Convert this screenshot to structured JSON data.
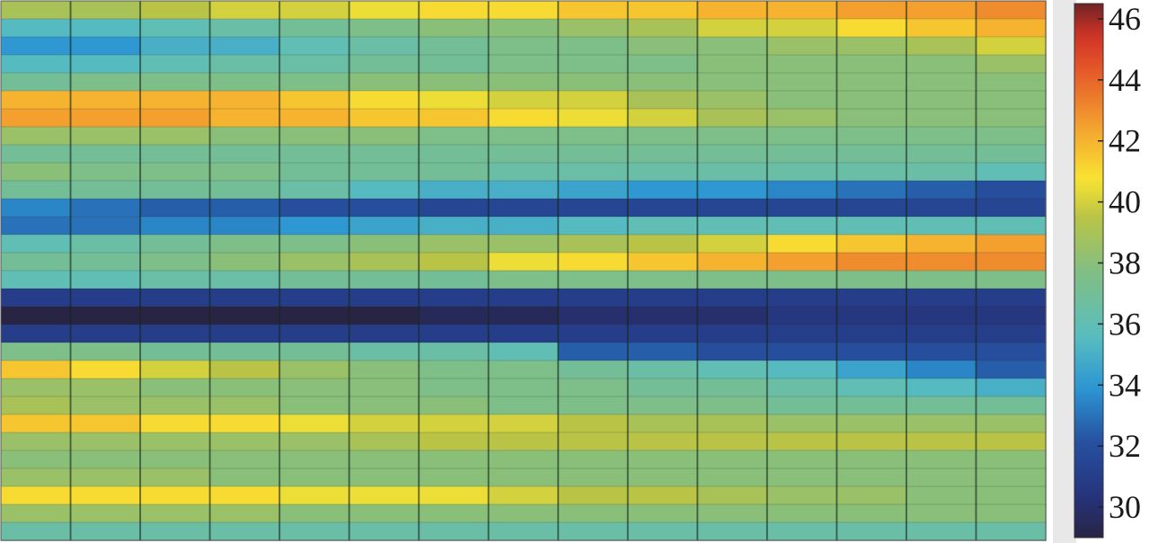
{
  "chart_data": {
    "type": "heatmap",
    "title": "",
    "xlabel": "",
    "ylabel": "",
    "n_columns": 15,
    "n_rows": 30,
    "colorbar": {
      "min": 29,
      "max": 46.5,
      "ticks": [
        "30",
        "32",
        "34",
        "36",
        "38",
        "40",
        "42",
        "44",
        "46"
      ],
      "colormap": "parula-like"
    },
    "values": [
      [
        39.0,
        39.0,
        39.5,
        40.0,
        40.0,
        40.5,
        41.0,
        41.0,
        41.5,
        41.5,
        42.0,
        42.0,
        42.5,
        42.5,
        43.0
      ],
      [
        35.5,
        35.5,
        36.0,
        36.5,
        37.0,
        37.5,
        38.0,
        38.0,
        38.5,
        39.0,
        40.0,
        40.0,
        41.0,
        41.5,
        42.0
      ],
      [
        34.0,
        34.0,
        35.0,
        35.0,
        36.0,
        36.5,
        37.0,
        37.5,
        37.5,
        38.0,
        38.0,
        38.5,
        38.5,
        39.0,
        40.0
      ],
      [
        35.5,
        35.5,
        36.0,
        36.5,
        36.5,
        37.0,
        37.0,
        37.5,
        37.5,
        37.5,
        38.0,
        38.0,
        38.0,
        38.0,
        38.5
      ],
      [
        37.0,
        37.5,
        37.5,
        37.5,
        37.5,
        38.0,
        38.0,
        38.0,
        38.0,
        38.0,
        38.0,
        38.0,
        38.0,
        38.0,
        38.0
      ],
      [
        42.0,
        42.0,
        42.0,
        42.0,
        41.5,
        41.0,
        40.5,
        40.0,
        40.0,
        39.0,
        38.5,
        38.0,
        38.0,
        38.0,
        38.0
      ],
      [
        42.5,
        42.5,
        42.5,
        42.0,
        42.0,
        41.5,
        41.5,
        41.0,
        40.5,
        40.0,
        39.0,
        38.5,
        38.0,
        38.0,
        38.0
      ],
      [
        38.5,
        38.5,
        38.5,
        38.0,
        38.0,
        38.0,
        37.5,
        37.5,
        37.5,
        37.5,
        37.5,
        37.5,
        37.5,
        37.5,
        37.5
      ],
      [
        37.0,
        37.0,
        37.0,
        37.0,
        37.0,
        37.0,
        37.0,
        37.0,
        37.0,
        37.0,
        37.0,
        37.0,
        37.0,
        37.0,
        37.0
      ],
      [
        38.0,
        37.5,
        37.5,
        37.5,
        37.0,
        37.0,
        37.0,
        36.5,
        36.5,
        36.5,
        36.5,
        36.5,
        36.5,
        36.5,
        36.0
      ],
      [
        37.0,
        37.0,
        37.0,
        37.0,
        36.5,
        35.5,
        35.0,
        35.0,
        34.5,
        34.0,
        34.0,
        33.5,
        33.0,
        32.5,
        32.0
      ],
      [
        33.5,
        33.0,
        32.5,
        32.5,
        32.0,
        32.0,
        31.5,
        31.5,
        31.5,
        31.5,
        31.5,
        31.5,
        31.5,
        31.5,
        31.5
      ],
      [
        33.0,
        33.0,
        33.5,
        33.5,
        34.0,
        34.5,
        35.0,
        35.0,
        35.5,
        36.0,
        36.0,
        36.0,
        36.0,
        36.0,
        36.0
      ],
      [
        36.0,
        36.5,
        37.0,
        37.5,
        37.5,
        38.0,
        38.5,
        38.5,
        39.0,
        39.5,
        40.0,
        41.0,
        41.5,
        42.0,
        42.5
      ],
      [
        37.0,
        37.0,
        37.5,
        38.0,
        38.5,
        39.0,
        39.5,
        40.5,
        41.0,
        41.5,
        42.0,
        42.5,
        43.0,
        43.0,
        43.0
      ],
      [
        36.0,
        36.0,
        36.5,
        36.5,
        37.0,
        37.0,
        37.0,
        37.5,
        37.5,
        37.5,
        37.5,
        37.5,
        37.5,
        37.5,
        37.5
      ],
      [
        31.0,
        31.0,
        31.0,
        31.0,
        31.0,
        31.0,
        31.0,
        31.0,
        31.0,
        31.0,
        31.0,
        31.0,
        31.0,
        31.0,
        31.0
      ],
      [
        29.0,
        29.0,
        29.0,
        29.0,
        29.0,
        29.0,
        29.5,
        29.5,
        30.0,
        30.0,
        30.0,
        30.5,
        30.5,
        30.5,
        30.5
      ],
      [
        31.0,
        31.0,
        31.0,
        31.0,
        31.0,
        31.0,
        31.0,
        31.0,
        31.0,
        31.0,
        31.0,
        31.0,
        31.0,
        31.0,
        31.0
      ],
      [
        37.5,
        37.5,
        37.0,
        37.0,
        37.0,
        36.5,
        36.5,
        36.0,
        32.5,
        32.5,
        32.0,
        32.0,
        32.0,
        32.0,
        32.0
      ],
      [
        41.5,
        41.0,
        40.0,
        39.5,
        38.5,
        38.0,
        37.5,
        37.5,
        37.0,
        36.5,
        36.0,
        35.5,
        34.5,
        33.5,
        32.5
      ],
      [
        38.5,
        38.5,
        38.0,
        38.0,
        38.0,
        38.0,
        37.5,
        37.5,
        37.5,
        37.0,
        37.0,
        36.5,
        36.0,
        35.5,
        35.0
      ],
      [
        39.0,
        38.5,
        38.5,
        38.5,
        38.0,
        38.0,
        38.0,
        37.5,
        37.5,
        37.5,
        37.5,
        37.0,
        37.0,
        37.0,
        37.0
      ],
      [
        41.5,
        41.5,
        41.0,
        41.0,
        40.5,
        40.0,
        40.0,
        40.0,
        39.5,
        39.0,
        39.0,
        38.5,
        38.5,
        38.5,
        38.5
      ],
      [
        38.5,
        38.5,
        38.5,
        38.5,
        38.5,
        39.0,
        39.5,
        39.5,
        39.5,
        39.5,
        39.5,
        39.5,
        39.5,
        39.5,
        39.5
      ],
      [
        38.0,
        38.0,
        38.0,
        38.0,
        38.0,
        38.0,
        38.0,
        38.0,
        38.0,
        38.0,
        38.0,
        38.0,
        38.0,
        38.0,
        38.0
      ],
      [
        38.5,
        38.5,
        38.5,
        38.0,
        38.0,
        38.0,
        38.0,
        38.0,
        38.0,
        38.0,
        38.0,
        38.0,
        38.0,
        38.0,
        38.0
      ],
      [
        41.0,
        41.0,
        41.0,
        41.0,
        40.5,
        40.5,
        40.5,
        40.0,
        39.5,
        39.5,
        39.0,
        38.5,
        38.5,
        38.0,
        38.0
      ],
      [
        38.5,
        38.5,
        38.5,
        38.5,
        38.0,
        38.0,
        38.0,
        38.0,
        38.0,
        38.0,
        38.0,
        38.0,
        38.0,
        38.0,
        38.0
      ],
      [
        36.5,
        36.5,
        36.5,
        36.5,
        36.5,
        36.5,
        36.5,
        36.5,
        36.5,
        36.5,
        36.5,
        36.5,
        36.5,
        36.5,
        36.5
      ]
    ]
  }
}
